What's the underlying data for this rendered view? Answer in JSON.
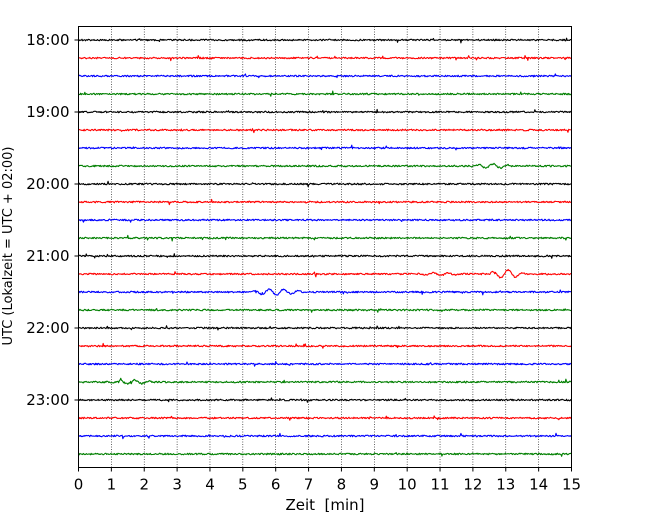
{
  "chart_data": {
    "type": "line",
    "title": "",
    "xlabel": "Zeit  [min]",
    "ylabel": "UTC (Lokalzeit = UTC + 02:00)",
    "xlim": [
      0,
      15
    ],
    "x_ticks": [
      "0",
      "1",
      "2",
      "3",
      "4",
      "5",
      "6",
      "7",
      "8",
      "9",
      "10",
      "11",
      "12",
      "13",
      "14",
      "15"
    ],
    "y_ticks": [
      {
        "time": "18:00",
        "row": 0
      },
      {
        "time": "19:00",
        "row": 4
      },
      {
        "time": "20:00",
        "row": 8
      },
      {
        "time": "21:00",
        "row": 12
      },
      {
        "time": "22:00",
        "row": 16
      },
      {
        "time": "23:00",
        "row": 20
      }
    ],
    "grid_x": true,
    "trace_colors": [
      "#000000",
      "#ff0000",
      "#0000ff",
      "#007f00"
    ],
    "traces": [
      {
        "start": "18:00",
        "color_index": 0
      },
      {
        "start": "18:15",
        "color_index": 1
      },
      {
        "start": "18:30",
        "color_index": 2
      },
      {
        "start": "18:45",
        "color_index": 3
      },
      {
        "start": "19:00",
        "color_index": 0
      },
      {
        "start": "19:15",
        "color_index": 1
      },
      {
        "start": "19:30",
        "color_index": 2
      },
      {
        "start": "19:45",
        "color_index": 3,
        "events": [
          {
            "t": 12.6,
            "amp": 2.2,
            "dur": 1.4
          }
        ]
      },
      {
        "start": "20:00",
        "color_index": 0
      },
      {
        "start": "20:15",
        "color_index": 1
      },
      {
        "start": "20:30",
        "color_index": 2
      },
      {
        "start": "20:45",
        "color_index": 3
      },
      {
        "start": "21:00",
        "color_index": 0
      },
      {
        "start": "21:15",
        "color_index": 1,
        "events": [
          {
            "t": 11.0,
            "amp": 1.5,
            "dur": 1.5
          },
          {
            "t": 13.0,
            "amp": 4.0,
            "dur": 1.2
          }
        ]
      },
      {
        "start": "21:30",
        "color_index": 2,
        "events": [
          {
            "t": 6.0,
            "amp": 2.8,
            "dur": 1.8
          }
        ]
      },
      {
        "start": "21:45",
        "color_index": 3
      },
      {
        "start": "22:00",
        "color_index": 0
      },
      {
        "start": "22:15",
        "color_index": 1
      },
      {
        "start": "22:30",
        "color_index": 2
      },
      {
        "start": "22:45",
        "color_index": 3,
        "events": [
          {
            "t": 1.6,
            "amp": 2.0,
            "dur": 1.6
          }
        ]
      },
      {
        "start": "23:00",
        "color_index": 0
      },
      {
        "start": "23:15",
        "color_index": 1
      },
      {
        "start": "23:30",
        "color_index": 2
      },
      {
        "start": "23:45",
        "color_index": 3
      }
    ]
  }
}
